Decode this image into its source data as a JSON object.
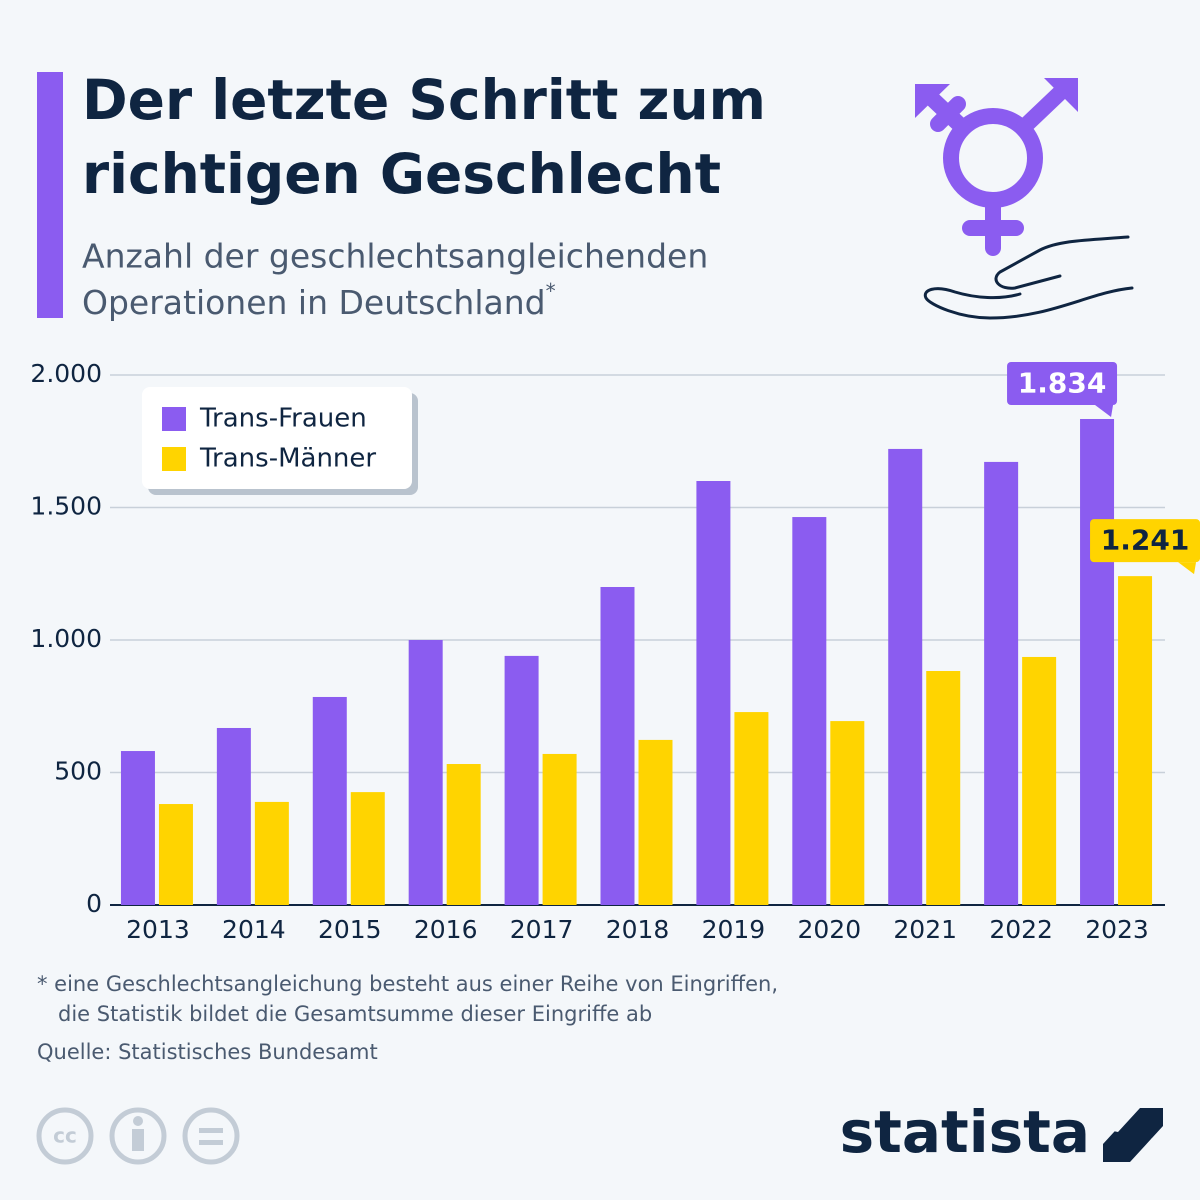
{
  "chart_data": {
    "type": "bar",
    "title_lines": [
      "Der letzte Schritt zum",
      "richtigen Geschlecht"
    ],
    "subtitle_lines": [
      "Anzahl der geschlechtsangleichenden",
      "Operationen in Deutschland"
    ],
    "subtitle_marker": "*",
    "categories": [
      "2013",
      "2014",
      "2015",
      "2016",
      "2017",
      "2018",
      "2019",
      "2020",
      "2021",
      "2022",
      "2023"
    ],
    "series": [
      {
        "name": "Trans-Frauen",
        "color": "#8b5cf0",
        "values": [
          581,
          668,
          785,
          1000,
          940,
          1200,
          1600,
          1464,
          1721,
          1672,
          1834
        ],
        "value_labels": [
          null,
          null,
          null,
          null,
          null,
          null,
          null,
          null,
          null,
          null,
          "1.834"
        ]
      },
      {
        "name": "Trans-Männer",
        "color": "#ffd400",
        "values": [
          381,
          389,
          426,
          532,
          570,
          623,
          728,
          694,
          883,
          936,
          1241
        ],
        "value_labels": [
          null,
          null,
          null,
          null,
          null,
          null,
          null,
          null,
          null,
          null,
          "1.241"
        ]
      }
    ],
    "ylim": [
      0,
      2000
    ],
    "yticks": [
      0,
      500,
      {
        "value": 1000,
        "label": "1.000"
      },
      {
        "value": 1500,
        "label": "1.500"
      },
      {
        "value": 2000,
        "label": "2.000"
      }
    ],
    "grid": true,
    "legend": "top-left",
    "footnote_lines": [
      "* eine Geschlechtsangleichung besteht aus einer Reihe von Eingriffen,",
      "die Statistik bildet die Gesamtsumme dieser Eingriffe ab"
    ],
    "source": "Quelle: Statistisches Bundesamt",
    "brand": "statista"
  }
}
